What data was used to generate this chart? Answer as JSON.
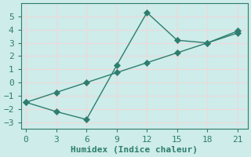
{
  "xlabel": "Humidex (Indice chaleur)",
  "ylabel": "",
  "x_line1": [
    0,
    3,
    6,
    9,
    12,
    15,
    18,
    21
  ],
  "y_line1": [
    -1.5,
    -2.2,
    -2.8,
    1.3,
    5.3,
    3.2,
    3.0,
    3.9
  ],
  "x_line2": [
    0,
    3,
    6,
    9,
    12,
    15,
    18,
    21
  ],
  "y_line2": [
    -1.5,
    -0.75,
    0.0,
    0.75,
    1.5,
    2.25,
    3.0,
    3.75
  ],
  "line_color": "#2e7d6e",
  "bg_color": "#cdecea",
  "grid_color": "#f0d8d8",
  "xlim": [
    -0.5,
    22
  ],
  "ylim": [
    -3.5,
    6.0
  ],
  "xticks": [
    0,
    3,
    6,
    9,
    12,
    15,
    18,
    21
  ],
  "yticks": [
    -3,
    -2,
    -1,
    0,
    1,
    2,
    3,
    4,
    5
  ],
  "markersize": 4,
  "linewidth": 1.0,
  "tick_fontsize": 8,
  "xlabel_fontsize": 8
}
